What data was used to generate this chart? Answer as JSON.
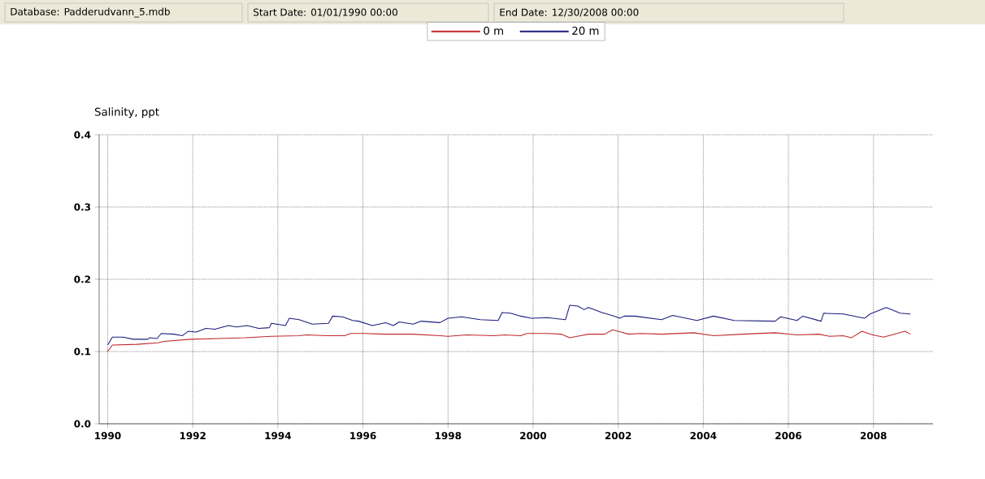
{
  "chart_data": {
    "type": "line",
    "ylabel": "Salinity, ppt",
    "annotations": [
      "Database: Padderudvann_5.mdb",
      "Start Date: 01/01/1990 00:00",
      "End Date: 12/30/2008 00:00"
    ],
    "xlim": [
      1989.8,
      2009.4
    ],
    "xticks": [
      1990,
      1992,
      1994,
      1996,
      1998,
      2000,
      2002,
      2004,
      2006,
      2008
    ],
    "ylim": [
      0,
      0.4
    ],
    "yticks": [
      {
        "value": 0,
        "label": "0.0"
      },
      0.1,
      0.2,
      0.3,
      0.4
    ],
    "grid": true,
    "legend": "top",
    "series": [
      {
        "name": "0 m",
        "color": "#c0282d",
        "x": [
          1990.0,
          1990.11,
          1990.69,
          1991.18,
          1991.32,
          1991.95,
          1992.6,
          1993.23,
          1993.85,
          1994.5,
          1994.69,
          1995.13,
          1995.57,
          1995.71,
          1996.03,
          1996.53,
          1997.18,
          1997.81,
          1998.0,
          1998.44,
          1999.08,
          1999.33,
          1999.71,
          1999.85,
          2000.34,
          2000.67,
          2000.86,
          2001.11,
          2001.3,
          2001.68,
          2001.87,
          2002.25,
          2002.52,
          2003.02,
          2003.78,
          2004.24,
          2004.92,
          2005.69,
          2006.2,
          2006.72,
          2006.97,
          2007.29,
          2007.48,
          2007.73,
          2007.98,
          2008.24,
          2008.74,
          2008.87
        ],
        "values": [
          0.1,
          0.109,
          0.11,
          0.112,
          0.114,
          0.117,
          0.118,
          0.119,
          0.121,
          0.122,
          0.123,
          0.122,
          0.122,
          0.125,
          0.125,
          0.124,
          0.124,
          0.122,
          0.121,
          0.123,
          0.122,
          0.123,
          0.122,
          0.125,
          0.125,
          0.124,
          0.119,
          0.122,
          0.124,
          0.124,
          0.13,
          0.124,
          0.125,
          0.124,
          0.126,
          0.122,
          0.124,
          0.126,
          0.123,
          0.124,
          0.121,
          0.122,
          0.119,
          0.128,
          0.123,
          0.12,
          0.128,
          0.124
        ]
      },
      {
        "name": "20 m",
        "color": "#1c1c7c",
        "x": [
          1990.0,
          1990.11,
          1990.36,
          1990.61,
          1990.94,
          1990.99,
          1991.16,
          1991.26,
          1991.56,
          1991.76,
          1991.89,
          1992.08,
          1992.31,
          1992.52,
          1992.84,
          1993.03,
          1993.28,
          1993.55,
          1993.8,
          1993.85,
          1994.18,
          1994.27,
          1994.5,
          1994.81,
          1995.19,
          1995.29,
          1995.52,
          1995.76,
          1995.9,
          1996.22,
          1996.53,
          1996.72,
          1996.85,
          1997.18,
          1997.37,
          1997.81,
          1998.0,
          1998.32,
          1998.76,
          1999.18,
          1999.27,
          1999.47,
          1999.71,
          1999.96,
          2000.34,
          2000.76,
          2000.86,
          2001.05,
          2001.2,
          2001.3,
          2001.62,
          2001.91,
          2002.04,
          2002.14,
          2002.39,
          2003.02,
          2003.28,
          2003.85,
          2004.24,
          2004.73,
          2005.69,
          2005.82,
          2006.2,
          2006.34,
          2006.77,
          2006.83,
          2007.29,
          2007.79,
          2007.92,
          2008.3,
          2008.63,
          2008.87
        ],
        "values": [
          0.109,
          0.12,
          0.12,
          0.117,
          0.117,
          0.119,
          0.118,
          0.125,
          0.124,
          0.122,
          0.128,
          0.127,
          0.132,
          0.131,
          0.136,
          0.134,
          0.136,
          0.132,
          0.133,
          0.139,
          0.136,
          0.146,
          0.144,
          0.138,
          0.139,
          0.149,
          0.148,
          0.143,
          0.142,
          0.136,
          0.14,
          0.136,
          0.141,
          0.138,
          0.142,
          0.14,
          0.146,
          0.148,
          0.144,
          0.143,
          0.154,
          0.153,
          0.149,
          0.146,
          0.147,
          0.144,
          0.164,
          0.163,
          0.158,
          0.161,
          0.154,
          0.149,
          0.146,
          0.149,
          0.149,
          0.144,
          0.15,
          0.143,
          0.149,
          0.143,
          0.142,
          0.148,
          0.143,
          0.149,
          0.142,
          0.153,
          0.152,
          0.146,
          0.152,
          0.161,
          0.153,
          0.152
        ]
      }
    ]
  }
}
